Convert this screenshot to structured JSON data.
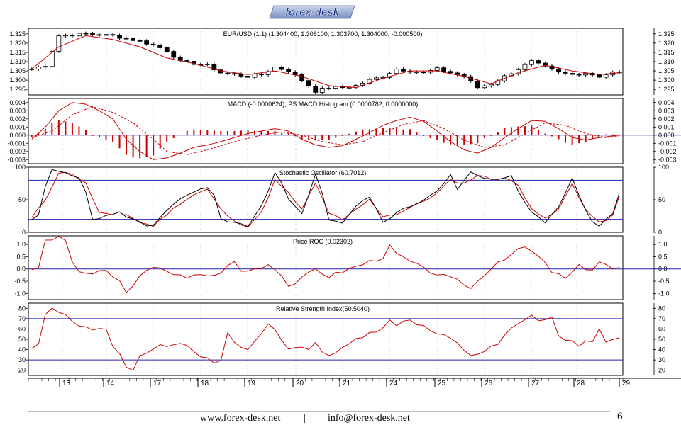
{
  "brand": {
    "logo_text": "forex-desk"
  },
  "footer": {
    "website": "www.forex-desk.net",
    "separator": "|",
    "email": "info@forex-desk.net",
    "page_number": "6"
  },
  "colors": {
    "price": "#000000",
    "average": "#cc0000",
    "signal_line": "#2222aa",
    "grid": "#999999",
    "logo_blue": "#1f3a8a"
  },
  "chart_data": [
    {
      "type": "candlestick",
      "title": "EUR/USD (1:1) (1.304400, 1.306100, 1.303700, 1.304000, -0.000500)",
      "ylim": [
        1.292,
        1.328
      ],
      "yticks": [
        "1.325",
        "1.320",
        "1.315",
        "1.310",
        "1.305",
        "1.300",
        "1.295"
      ],
      "close_anchors": [
        [
          0,
          1.306
        ],
        [
          2,
          1.308
        ],
        [
          4,
          1.324
        ],
        [
          8,
          1.325
        ],
        [
          12,
          1.324
        ],
        [
          16,
          1.321
        ],
        [
          18,
          1.319
        ],
        [
          20,
          1.316
        ],
        [
          22,
          1.31
        ],
        [
          24,
          1.309
        ],
        [
          26,
          1.308
        ],
        [
          28,
          1.304
        ],
        [
          30,
          1.303
        ],
        [
          32,
          1.302
        ],
        [
          34,
          1.303
        ],
        [
          36,
          1.307
        ],
        [
          38,
          1.305
        ],
        [
          40,
          1.3
        ],
        [
          42,
          1.294
        ],
        [
          44,
          1.296
        ],
        [
          46,
          1.296
        ],
        [
          48,
          1.297
        ],
        [
          50,
          1.3
        ],
        [
          52,
          1.302
        ],
        [
          54,
          1.306
        ],
        [
          56,
          1.305
        ],
        [
          58,
          1.304
        ],
        [
          60,
          1.306
        ],
        [
          62,
          1.304
        ],
        [
          64,
          1.302
        ],
        [
          66,
          1.296
        ],
        [
          68,
          1.298
        ],
        [
          70,
          1.302
        ],
        [
          72,
          1.306
        ],
        [
          74,
          1.31
        ],
        [
          76,
          1.307
        ],
        [
          78,
          1.304
        ],
        [
          80,
          1.303
        ],
        [
          82,
          1.304
        ],
        [
          84,
          1.302
        ],
        [
          86,
          1.304
        ],
        [
          87,
          1.304
        ]
      ],
      "average_anchors": [
        [
          0,
          1.306
        ],
        [
          4,
          1.318
        ],
        [
          8,
          1.324
        ],
        [
          12,
          1.322
        ],
        [
          16,
          1.318
        ],
        [
          20,
          1.312
        ],
        [
          24,
          1.309
        ],
        [
          28,
          1.305
        ],
        [
          32,
          1.303
        ],
        [
          36,
          1.305
        ],
        [
          40,
          1.302
        ],
        [
          44,
          1.297
        ],
        [
          48,
          1.296
        ],
        [
          52,
          1.301
        ],
        [
          56,
          1.305
        ],
        [
          60,
          1.305
        ],
        [
          64,
          1.302
        ],
        [
          68,
          1.298
        ],
        [
          72,
          1.304
        ],
        [
          76,
          1.308
        ],
        [
          80,
          1.305
        ],
        [
          84,
          1.303
        ],
        [
          87,
          1.304
        ]
      ]
    },
    {
      "type": "line",
      "title": "MACD (-0.0000624), PS MACD Histogram (0.0000782, 0.0000000)",
      "ylim": [
        -0.0035,
        0.0045
      ],
      "yticks": [
        "0.004",
        "0.003",
        "0.002",
        "0.001",
        "0.000",
        "-0.001",
        "-0.002",
        "-0.003"
      ],
      "zero_line": 0,
      "macd_anchors": [
        [
          0,
          -0.0005
        ],
        [
          2,
          0.001
        ],
        [
          4,
          0.003
        ],
        [
          6,
          0.004
        ],
        [
          8,
          0.0038
        ],
        [
          10,
          0.003
        ],
        [
          12,
          0.002
        ],
        [
          14,
          -0.0005
        ],
        [
          16,
          -0.002
        ],
        [
          18,
          -0.003
        ],
        [
          20,
          -0.0028
        ],
        [
          22,
          -0.0022
        ],
        [
          24,
          -0.0015
        ],
        [
          26,
          -0.0012
        ],
        [
          28,
          -0.0008
        ],
        [
          30,
          -0.0003
        ],
        [
          32,
          0.0002
        ],
        [
          34,
          0.0005
        ],
        [
          36,
          0.0008
        ],
        [
          38,
          0.0005
        ],
        [
          40,
          -0.0005
        ],
        [
          42,
          -0.0012
        ],
        [
          44,
          -0.0015
        ],
        [
          46,
          -0.0013
        ],
        [
          48,
          -0.0005
        ],
        [
          50,
          0.0003
        ],
        [
          52,
          0.0012
        ],
        [
          54,
          0.0018
        ],
        [
          56,
          0.0022
        ],
        [
          58,
          0.0017
        ],
        [
          60,
          0.0005
        ],
        [
          62,
          -0.0008
        ],
        [
          64,
          -0.0018
        ],
        [
          66,
          -0.0022
        ],
        [
          68,
          -0.0015
        ],
        [
          70,
          -0.0003
        ],
        [
          72,
          0.0008
        ],
        [
          74,
          0.0018
        ],
        [
          76,
          0.0017
        ],
        [
          78,
          0.0008
        ],
        [
          80,
          -0.0003
        ],
        [
          82,
          -0.0006
        ],
        [
          84,
          -0.0003
        ],
        [
          87,
          0.0
        ]
      ],
      "signal_anchors": [
        [
          0,
          -0.0003
        ],
        [
          3,
          0.0005
        ],
        [
          6,
          0.0025
        ],
        [
          9,
          0.0035
        ],
        [
          12,
          0.0028
        ],
        [
          15,
          0.0015
        ],
        [
          18,
          -0.0005
        ],
        [
          20,
          -0.002
        ],
        [
          23,
          -0.0024
        ],
        [
          26,
          -0.0018
        ],
        [
          30,
          -0.0008
        ],
        [
          34,
          0.0
        ],
        [
          37,
          0.0004
        ],
        [
          40,
          0.0
        ],
        [
          43,
          -0.0008
        ],
        [
          46,
          -0.0012
        ],
        [
          49,
          -0.0008
        ],
        [
          52,
          0.0003
        ],
        [
          55,
          0.0013
        ],
        [
          58,
          0.0018
        ],
        [
          61,
          0.0008
        ],
        [
          64,
          -0.0006
        ],
        [
          67,
          -0.0015
        ],
        [
          70,
          -0.0012
        ],
        [
          73,
          0.0002
        ],
        [
          76,
          0.0015
        ],
        [
          79,
          0.0012
        ],
        [
          82,
          0.0002
        ],
        [
          85,
          -0.0003
        ],
        [
          87,
          -0.0001
        ]
      ]
    },
    {
      "type": "line",
      "title": "Stochastic Oscillator (60.7012)",
      "ylim": [
        0,
        100
      ],
      "yticks": [
        "100",
        "50",
        "0"
      ],
      "hlines": [
        80,
        20
      ],
      "k_anchors": [
        [
          0,
          20
        ],
        [
          1,
          25
        ],
        [
          2,
          70
        ],
        [
          3,
          95
        ],
        [
          5,
          92
        ],
        [
          7,
          85
        ],
        [
          8,
          60
        ],
        [
          9,
          20
        ],
        [
          11,
          25
        ],
        [
          13,
          30
        ],
        [
          15,
          20
        ],
        [
          17,
          10
        ],
        [
          18,
          12
        ],
        [
          20,
          35
        ],
        [
          22,
          50
        ],
        [
          24,
          62
        ],
        [
          26,
          68
        ],
        [
          27,
          55
        ],
        [
          28,
          20
        ],
        [
          30,
          15
        ],
        [
          32,
          8
        ],
        [
          34,
          40
        ],
        [
          35,
          62
        ],
        [
          36,
          90
        ],
        [
          37,
          75
        ],
        [
          38,
          50
        ],
        [
          40,
          30
        ],
        [
          42,
          88
        ],
        [
          43,
          60
        ],
        [
          44,
          20
        ],
        [
          46,
          15
        ],
        [
          48,
          40
        ],
        [
          50,
          55
        ],
        [
          52,
          15
        ],
        [
          54,
          30
        ],
        [
          56,
          40
        ],
        [
          58,
          50
        ],
        [
          60,
          65
        ],
        [
          62,
          88
        ],
        [
          63,
          65
        ],
        [
          65,
          92
        ],
        [
          67,
          82
        ],
        [
          69,
          80
        ],
        [
          71,
          88
        ],
        [
          72,
          65
        ],
        [
          74,
          30
        ],
        [
          76,
          15
        ],
        [
          78,
          40
        ],
        [
          79,
          60
        ],
        [
          80,
          85
        ],
        [
          81,
          55
        ],
        [
          83,
          15
        ],
        [
          84,
          10
        ],
        [
          86,
          30
        ],
        [
          87,
          60
        ]
      ],
      "d_anchors": [
        [
          0,
          22
        ],
        [
          2,
          50
        ],
        [
          4,
          92
        ],
        [
          6,
          90
        ],
        [
          8,
          75
        ],
        [
          10,
          30
        ],
        [
          12,
          25
        ],
        [
          14,
          28
        ],
        [
          16,
          15
        ],
        [
          18,
          10
        ],
        [
          20,
          28
        ],
        [
          22,
          45
        ],
        [
          24,
          58
        ],
        [
          26,
          66
        ],
        [
          28,
          35
        ],
        [
          30,
          16
        ],
        [
          32,
          10
        ],
        [
          34,
          30
        ],
        [
          36,
          80
        ],
        [
          38,
          60
        ],
        [
          40,
          35
        ],
        [
          42,
          75
        ],
        [
          44,
          30
        ],
        [
          46,
          18
        ],
        [
          48,
          35
        ],
        [
          50,
          50
        ],
        [
          52,
          25
        ],
        [
          54,
          28
        ],
        [
          56,
          38
        ],
        [
          58,
          48
        ],
        [
          60,
          60
        ],
        [
          62,
          80
        ],
        [
          64,
          75
        ],
        [
          66,
          88
        ],
        [
          68,
          82
        ],
        [
          70,
          84
        ],
        [
          72,
          72
        ],
        [
          74,
          38
        ],
        [
          76,
          20
        ],
        [
          78,
          35
        ],
        [
          80,
          75
        ],
        [
          82,
          35
        ],
        [
          84,
          14
        ],
        [
          86,
          25
        ],
        [
          87,
          55
        ]
      ]
    },
    {
      "type": "line",
      "title": "Price ROC (0.02302)",
      "ylim": [
        -1.25,
        1.35
      ],
      "yticks": [
        "1.0",
        "0.5",
        "0.0",
        "-0.5",
        "-1.0"
      ],
      "zero_line": 0,
      "values_anchors": [
        [
          0,
          0.0
        ],
        [
          1,
          0.1
        ],
        [
          2,
          1.1
        ],
        [
          3,
          1.2
        ],
        [
          4,
          1.3
        ],
        [
          5,
          1.2
        ],
        [
          6,
          0.2
        ],
        [
          7,
          -0.1
        ],
        [
          9,
          -0.2
        ],
        [
          11,
          -0.1
        ],
        [
          12,
          -0.3
        ],
        [
          13,
          -0.5
        ],
        [
          14,
          -1.0
        ],
        [
          15,
          -0.6
        ],
        [
          17,
          -0.1
        ],
        [
          19,
          0.1
        ],
        [
          21,
          -0.2
        ],
        [
          23,
          -0.4
        ],
        [
          25,
          -0.2
        ],
        [
          27,
          -0.3
        ],
        [
          29,
          0.1
        ],
        [
          30,
          0.3
        ],
        [
          31,
          -0.1
        ],
        [
          33,
          0.0
        ],
        [
          35,
          0.2
        ],
        [
          37,
          -0.2
        ],
        [
          38,
          -0.7
        ],
        [
          40,
          -0.4
        ],
        [
          42,
          0.0
        ],
        [
          44,
          -0.3
        ],
        [
          46,
          -0.1
        ],
        [
          48,
          0.1
        ],
        [
          50,
          0.3
        ],
        [
          52,
          0.5
        ],
        [
          53,
          0.9
        ],
        [
          54,
          0.6
        ],
        [
          56,
          0.3
        ],
        [
          58,
          0.0
        ],
        [
          60,
          -0.2
        ],
        [
          62,
          -0.4
        ],
        [
          64,
          -0.6
        ],
        [
          65,
          -0.8
        ],
        [
          67,
          -0.2
        ],
        [
          69,
          0.3
        ],
        [
          71,
          0.6
        ],
        [
          73,
          0.9
        ],
        [
          75,
          0.5
        ],
        [
          77,
          -0.1
        ],
        [
          79,
          -0.4
        ],
        [
          81,
          0.1
        ],
        [
          83,
          0.0
        ],
        [
          84,
          0.3
        ],
        [
          86,
          0.0
        ],
        [
          87,
          0.02
        ]
      ]
    },
    {
      "type": "line",
      "title": "Relative Strength Index(50.5040)",
      "ylim": [
        15,
        85
      ],
      "yticks": [
        "80",
        "70",
        "60",
        "50",
        "40",
        "30",
        "20"
      ],
      "hlines": [
        70,
        30
      ],
      "values_anchors": [
        [
          0,
          40
        ],
        [
          1,
          45
        ],
        [
          2,
          72
        ],
        [
          3,
          80
        ],
        [
          4,
          78
        ],
        [
          5,
          72
        ],
        [
          7,
          65
        ],
        [
          9,
          60
        ],
        [
          11,
          58
        ],
        [
          12,
          45
        ],
        [
          13,
          35
        ],
        [
          14,
          22
        ],
        [
          15,
          22
        ],
        [
          16,
          35
        ],
        [
          18,
          40
        ],
        [
          20,
          45
        ],
        [
          22,
          48
        ],
        [
          24,
          40
        ],
        [
          26,
          30
        ],
        [
          27,
          25
        ],
        [
          28,
          30
        ],
        [
          29,
          55
        ],
        [
          30,
          45
        ],
        [
          32,
          40
        ],
        [
          34,
          55
        ],
        [
          35,
          65
        ],
        [
          36,
          60
        ],
        [
          37,
          50
        ],
        [
          38,
          42
        ],
        [
          40,
          40
        ],
        [
          42,
          45
        ],
        [
          44,
          35
        ],
        [
          46,
          40
        ],
        [
          48,
          50
        ],
        [
          50,
          58
        ],
        [
          52,
          60
        ],
        [
          53,
          68
        ],
        [
          54,
          65
        ],
        [
          56,
          70
        ],
        [
          58,
          62
        ],
        [
          60,
          55
        ],
        [
          62,
          50
        ],
        [
          64,
          40
        ],
        [
          65,
          35
        ],
        [
          67,
          38
        ],
        [
          69,
          45
        ],
        [
          71,
          60
        ],
        [
          73,
          68
        ],
        [
          74,
          75
        ],
        [
          75,
          68
        ],
        [
          77,
          70
        ],
        [
          78,
          55
        ],
        [
          79,
          48
        ],
        [
          81,
          45
        ],
        [
          83,
          50
        ],
        [
          84,
          58
        ],
        [
          85,
          45
        ],
        [
          86,
          50
        ],
        [
          87,
          50
        ]
      ]
    }
  ],
  "x_axis": {
    "labels": [
      "13",
      "14",
      "17",
      "18",
      "19",
      "20",
      "21",
      "24",
      "25",
      "26",
      "27",
      "28",
      "29"
    ]
  }
}
